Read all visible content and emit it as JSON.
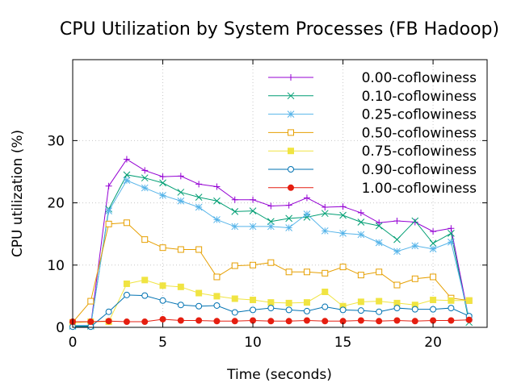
{
  "chart_data": {
    "type": "line",
    "title": "CPU Utilization by System Processes (FB Hadoop)",
    "xlabel": "Time (seconds)",
    "ylabel": "CPU utilization (%)",
    "xlim": [
      0,
      23
    ],
    "ylim": [
      0,
      43
    ],
    "xticks": [
      0,
      5,
      10,
      15,
      20
    ],
    "yticks": [
      0,
      10,
      20,
      30
    ],
    "grid": true,
    "legend_position": "top-right",
    "x": [
      0,
      1,
      2,
      3,
      4,
      5,
      6,
      7,
      8,
      9,
      10,
      11,
      12,
      13,
      14,
      15,
      16,
      17,
      18,
      19,
      20,
      21,
      22
    ],
    "series": [
      {
        "name": "0.00-coflowiness",
        "color": "#9400d3",
        "marker": "plus",
        "values": [
          0.3,
          0.3,
          22.7,
          27.0,
          25.2,
          24.2,
          24.3,
          23.0,
          22.6,
          20.5,
          20.5,
          19.5,
          19.6,
          20.8,
          19.3,
          19.4,
          18.4,
          16.8,
          17.1,
          16.9,
          15.4,
          15.9,
          1.2
        ]
      },
      {
        "name": "0.10-coflowiness",
        "color": "#009e73",
        "marker": "cross",
        "values": [
          0.2,
          0.2,
          19.0,
          24.5,
          24.0,
          23.2,
          21.7,
          20.9,
          20.3,
          18.6,
          18.7,
          17.0,
          17.5,
          17.7,
          18.3,
          18.0,
          16.9,
          16.3,
          14.1,
          17.1,
          13.5,
          15.1,
          0.8
        ]
      },
      {
        "name": "0.25-coflowiness",
        "color": "#56b4e9",
        "marker": "star",
        "values": [
          0.3,
          0.3,
          18.7,
          23.6,
          22.4,
          21.2,
          20.3,
          19.3,
          17.3,
          16.2,
          16.2,
          16.2,
          16.0,
          18.2,
          15.5,
          15.1,
          14.9,
          13.6,
          12.2,
          13.1,
          12.6,
          13.7,
          1.5
        ]
      },
      {
        "name": "0.50-coflowiness",
        "color": "#e69f00",
        "marker": "square-open",
        "values": [
          0.8,
          4.2,
          16.6,
          16.8,
          14.1,
          12.8,
          12.5,
          12.5,
          8.1,
          9.9,
          10.0,
          10.4,
          8.9,
          8.9,
          8.7,
          9.7,
          8.4,
          8.9,
          6.8,
          7.8,
          8.1,
          4.7,
          4.3
        ]
      },
      {
        "name": "0.75-coflowiness",
        "color": "#f0e442",
        "marker": "square-filled",
        "values": [
          0.7,
          0.9,
          0.9,
          7.0,
          7.6,
          6.7,
          6.5,
          5.5,
          5.0,
          4.6,
          4.4,
          4.0,
          3.9,
          4.0,
          5.7,
          3.4,
          4.1,
          4.2,
          3.9,
          3.6,
          4.4,
          4.3,
          4.3
        ]
      },
      {
        "name": "0.90-coflowiness",
        "color": "#0072b2",
        "marker": "circle-open",
        "values": [
          0.1,
          0.1,
          2.5,
          5.2,
          5.1,
          4.3,
          3.6,
          3.4,
          3.5,
          2.4,
          2.8,
          3.1,
          2.8,
          2.6,
          3.3,
          2.8,
          2.7,
          2.5,
          3.1,
          2.9,
          2.9,
          3.1,
          1.8
        ]
      },
      {
        "name": "1.00-coflowiness",
        "color": "#e51e10",
        "marker": "circle-filled",
        "values": [
          0.9,
          0.9,
          1.0,
          0.9,
          0.9,
          1.3,
          1.1,
          1.1,
          1.0,
          1.0,
          1.1,
          1.0,
          1.0,
          1.1,
          1.0,
          1.0,
          1.1,
          1.0,
          1.1,
          1.0,
          1.1,
          1.1,
          1.2
        ]
      }
    ]
  }
}
